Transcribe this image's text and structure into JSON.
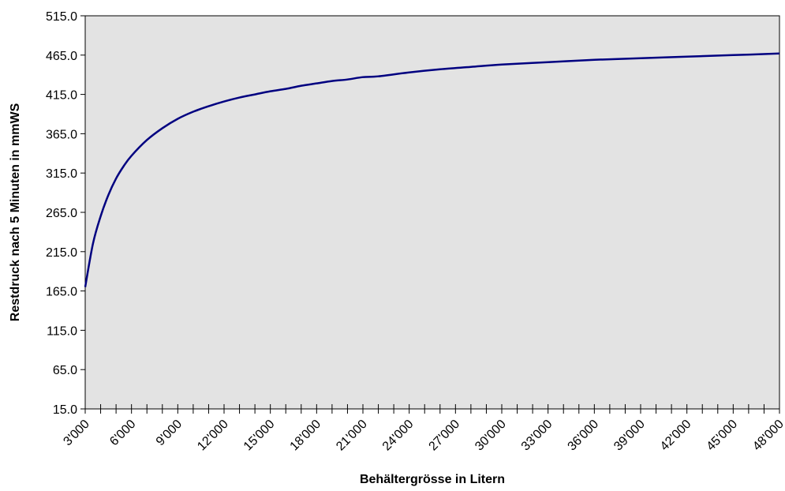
{
  "chart_data": {
    "type": "line",
    "title": "",
    "xlabel": "Behältergrösse in Litern",
    "ylabel": "Restdruck nach 5 Minuten in mmWS",
    "xlim": [
      3000,
      48000
    ],
    "ylim": [
      15.0,
      515.0
    ],
    "y_ticks": [
      "515.0",
      "465.0",
      "415.0",
      "365.0",
      "315.0",
      "265.0",
      "215.0",
      "165.0",
      "115.0",
      "65.0",
      "15.0"
    ],
    "x_tick_labels": [
      "3'000",
      "6'000",
      "9'000",
      "12'000",
      "15'000",
      "18'000",
      "21'000",
      "24'000",
      "27'000",
      "30'000",
      "33'000",
      "36'000",
      "39'000",
      "42'000",
      "45'000",
      "48'000"
    ],
    "grid": false,
    "plot_background": "#E3E3E3",
    "line_color": "#000080",
    "series": [
      {
        "x": [
          3000,
          3500,
          4000,
          4500,
          5000,
          5500,
          6000,
          7000,
          8000,
          9000,
          10000,
          11000,
          12000,
          13000,
          14000,
          15000,
          16000,
          17000,
          18000,
          19000,
          20000,
          21000,
          22000,
          24000,
          26000,
          28000,
          30000,
          33000,
          36000,
          39000,
          42000,
          45000,
          48000
        ],
        "y": [
          170,
          225,
          260,
          287,
          308,
          324,
          337,
          357,
          372,
          384,
          393,
          400,
          406,
          411,
          415,
          419,
          422,
          426,
          429,
          432,
          434,
          437,
          438,
          443,
          447,
          450,
          453,
          456,
          459,
          461,
          463,
          465,
          467
        ]
      }
    ]
  }
}
